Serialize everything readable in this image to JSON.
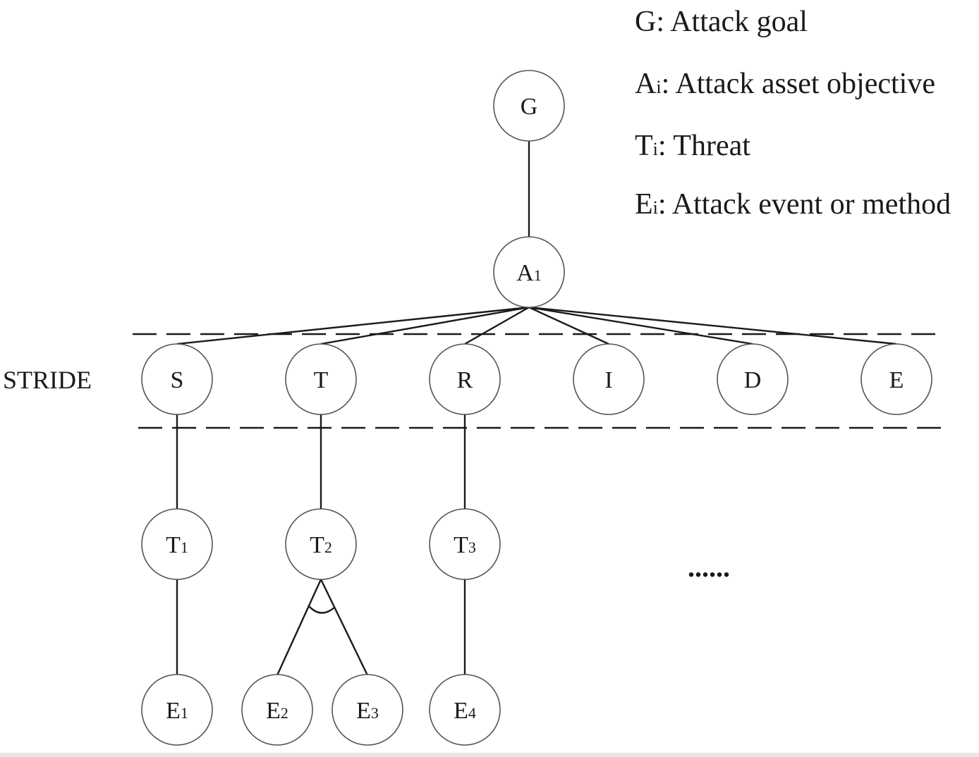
{
  "legend": [
    {
      "symbol": "G",
      "sub": "",
      "text": ": Attack goal"
    },
    {
      "symbol": "A",
      "sub": "i",
      "text": ": Attack asset objective"
    },
    {
      "symbol": "T",
      "sub": "i",
      "text": ": Threat"
    },
    {
      "symbol": "E",
      "sub": "i",
      "text": ": Attack event or method"
    }
  ],
  "stride_label": "STRIDE",
  "ellipsis": "......",
  "nodes": {
    "goal": {
      "label": "G",
      "sub": ""
    },
    "asset": {
      "label": "A",
      "sub": "1"
    },
    "stride": [
      {
        "label": "S",
        "sub": ""
      },
      {
        "label": "T",
        "sub": ""
      },
      {
        "label": "R",
        "sub": ""
      },
      {
        "label": "I",
        "sub": ""
      },
      {
        "label": "D",
        "sub": ""
      },
      {
        "label": "E",
        "sub": ""
      }
    ],
    "threats": [
      {
        "label": "T",
        "sub": "1"
      },
      {
        "label": "T",
        "sub": "2"
      },
      {
        "label": "T",
        "sub": "3"
      }
    ],
    "events": [
      {
        "label": "E",
        "sub": "1"
      },
      {
        "label": "E",
        "sub": "2"
      },
      {
        "label": "E",
        "sub": "3"
      },
      {
        "label": "E",
        "sub": "4"
      }
    ]
  }
}
